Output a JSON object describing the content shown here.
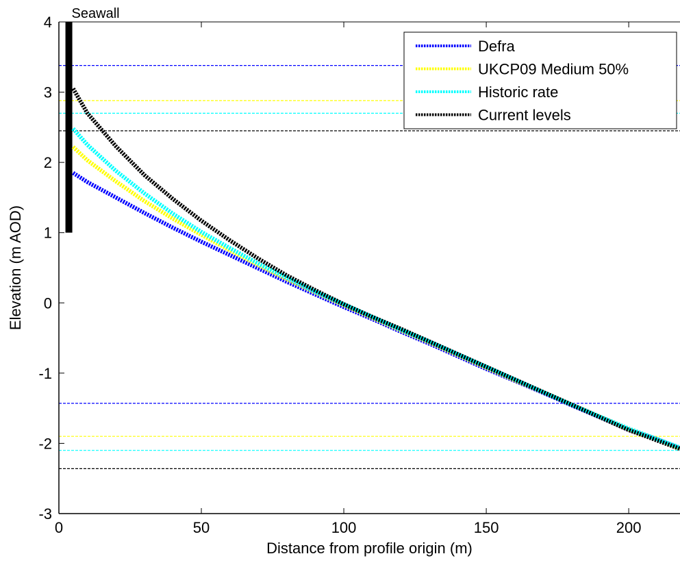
{
  "chart_data": {
    "type": "line",
    "xlabel": "Distance from profile origin (m)",
    "ylabel": "Elevation (m AOD)",
    "xlim": [
      0,
      218
    ],
    "ylim": [
      -3,
      4
    ],
    "xticks": [
      0,
      50,
      100,
      150,
      200
    ],
    "yticks": [
      -3,
      -2,
      -1,
      0,
      1,
      2,
      3,
      4
    ],
    "grid": false,
    "legend_position": "top-right",
    "series": [
      {
        "name": "Defra",
        "color": "#0000ff",
        "x": [
          5,
          10,
          20,
          30,
          40,
          50,
          60,
          70,
          80,
          90,
          100,
          110,
          120,
          130,
          140,
          150,
          160,
          170,
          180,
          190,
          200,
          210,
          218
        ],
        "y": [
          1.85,
          1.72,
          1.5,
          1.28,
          1.07,
          0.87,
          0.68,
          0.49,
          0.3,
          0.12,
          -0.06,
          -0.23,
          -0.41,
          -0.58,
          -0.76,
          -0.94,
          -1.11,
          -1.28,
          -1.46,
          -1.63,
          -1.81,
          -1.94,
          -2.07
        ],
        "level": 3.38,
        "low_level": -1.43
      },
      {
        "name": "UKCP09 Medium 50%",
        "color": "#ffff00",
        "x": [
          5,
          10,
          20,
          30,
          40,
          50,
          60,
          70,
          80,
          90,
          100,
          110,
          120,
          130,
          140,
          150,
          160,
          170,
          180,
          190,
          200,
          210,
          218
        ],
        "y": [
          2.22,
          2.03,
          1.73,
          1.45,
          1.2,
          0.97,
          0.75,
          0.54,
          0.34,
          0.15,
          -0.03,
          -0.21,
          -0.39,
          -0.56,
          -0.74,
          -0.92,
          -1.1,
          -1.27,
          -1.45,
          -1.62,
          -1.8,
          -1.94,
          -2.07
        ],
        "level": 2.88,
        "low_level": -1.9
      },
      {
        "name": "Historic rate",
        "color": "#00ffff",
        "x": [
          5,
          10,
          20,
          30,
          40,
          50,
          60,
          70,
          80,
          90,
          100,
          110,
          120,
          130,
          140,
          150,
          160,
          170,
          180,
          190,
          200,
          210,
          218
        ],
        "y": [
          2.48,
          2.25,
          1.88,
          1.56,
          1.27,
          1.01,
          0.78,
          0.56,
          0.36,
          0.16,
          -0.02,
          -0.2,
          -0.38,
          -0.55,
          -0.73,
          -0.91,
          -1.09,
          -1.27,
          -1.45,
          -1.62,
          -1.79,
          -1.94,
          -2.06
        ],
        "level": 2.7,
        "low_level": -2.1
      },
      {
        "name": "Current levels",
        "color": "#000000",
        "x": [
          5,
          10,
          20,
          30,
          40,
          50,
          60,
          70,
          80,
          90,
          100,
          110,
          120,
          130,
          140,
          150,
          160,
          170,
          180,
          190,
          200,
          210,
          218
        ],
        "y": [
          3.05,
          2.7,
          2.23,
          1.82,
          1.48,
          1.17,
          0.89,
          0.63,
          0.39,
          0.18,
          -0.02,
          -0.2,
          -0.37,
          -0.55,
          -0.73,
          -0.91,
          -1.09,
          -1.27,
          -1.45,
          -1.63,
          -1.81,
          -1.96,
          -2.08
        ],
        "level": 2.45,
        "low_level": -2.36
      }
    ],
    "annotations": [
      {
        "text": "Seawall",
        "x": 3.5,
        "y_bottom": 1.0,
        "y_top": 4.0
      }
    ]
  }
}
